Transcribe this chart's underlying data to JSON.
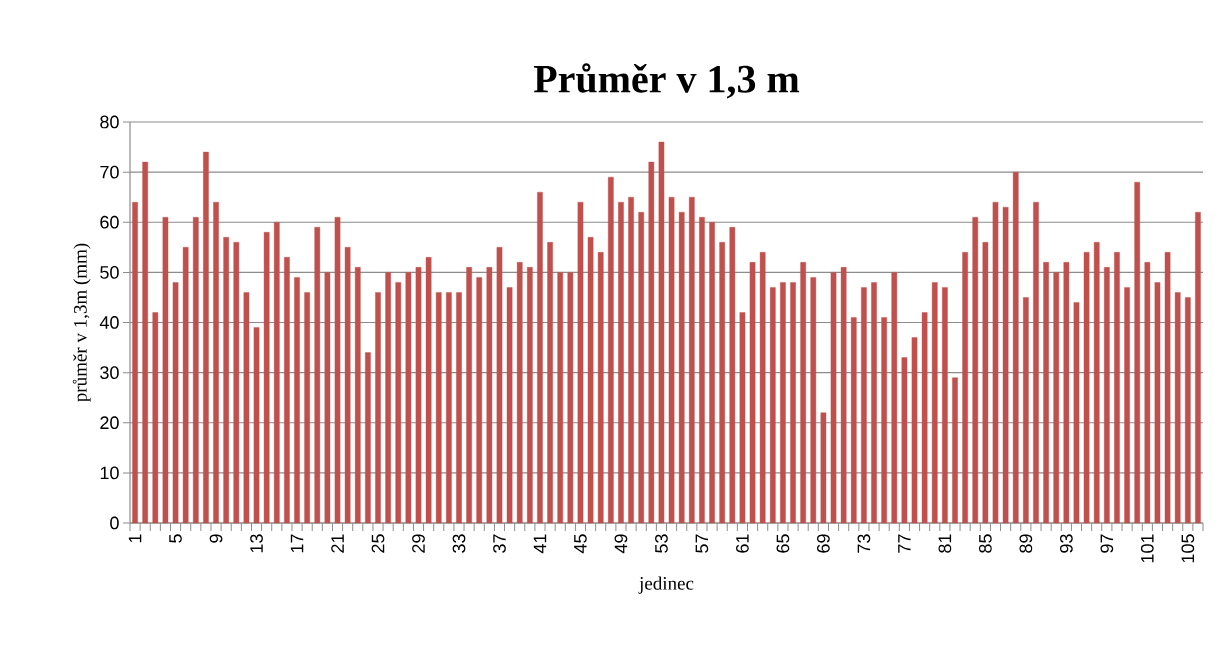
{
  "chart_data": {
    "type": "bar",
    "title": "Průměr v 1,3 m",
    "xlabel": "jedinec",
    "ylabel": "průměr v 1,3m (mm)",
    "categories": [
      "1",
      null,
      null,
      null,
      "5",
      null,
      null,
      null,
      "9",
      null,
      null,
      null,
      "13",
      null,
      null,
      null,
      "17",
      null,
      null,
      null,
      "21",
      null,
      null,
      null,
      "25",
      null,
      null,
      null,
      "29",
      null,
      null,
      null,
      "33",
      null,
      null,
      null,
      "37",
      null,
      null,
      null,
      "41",
      null,
      null,
      null,
      "45",
      null,
      null,
      null,
      "49",
      null,
      null,
      null,
      "53",
      null,
      null,
      null,
      "57",
      null,
      null,
      null,
      "61",
      null,
      null,
      null,
      "65",
      null,
      null,
      null,
      "69",
      null,
      null,
      null,
      "73",
      null,
      null,
      null,
      "77",
      null,
      null,
      null,
      "81",
      null,
      null,
      null,
      "85",
      null,
      null,
      null,
      "89",
      null,
      null,
      null,
      "93",
      null,
      null,
      null,
      "97",
      null,
      null,
      null,
      "101",
      null,
      null,
      null,
      "105",
      null
    ],
    "values": [
      64,
      72,
      42,
      61,
      48,
      55,
      61,
      74,
      64,
      57,
      56,
      46,
      39,
      58,
      60,
      53,
      49,
      46,
      59,
      50,
      61,
      55,
      51,
      34,
      46,
      50,
      48,
      50,
      51,
      53,
      46,
      46,
      46,
      51,
      49,
      51,
      55,
      47,
      52,
      51,
      66,
      56,
      50,
      50,
      64,
      57,
      54,
      69,
      64,
      65,
      62,
      72,
      76,
      65,
      62,
      65,
      61,
      60,
      56,
      59,
      42,
      52,
      54,
      47,
      48,
      48,
      52,
      49,
      22,
      50,
      51,
      41,
      47,
      48,
      41,
      50,
      33,
      37,
      42,
      48,
      47,
      29,
      54,
      61,
      56,
      64,
      63,
      70,
      45,
      64,
      52,
      50,
      52,
      44,
      54,
      56,
      51,
      54,
      47,
      68,
      52,
      48,
      54,
      46,
      45,
      62
    ],
    "color": "#c0504d",
    "ylim": [
      0,
      80
    ],
    "yticks": [
      0,
      10,
      20,
      30,
      40,
      50,
      60,
      70,
      80
    ],
    "grid": "y"
  }
}
